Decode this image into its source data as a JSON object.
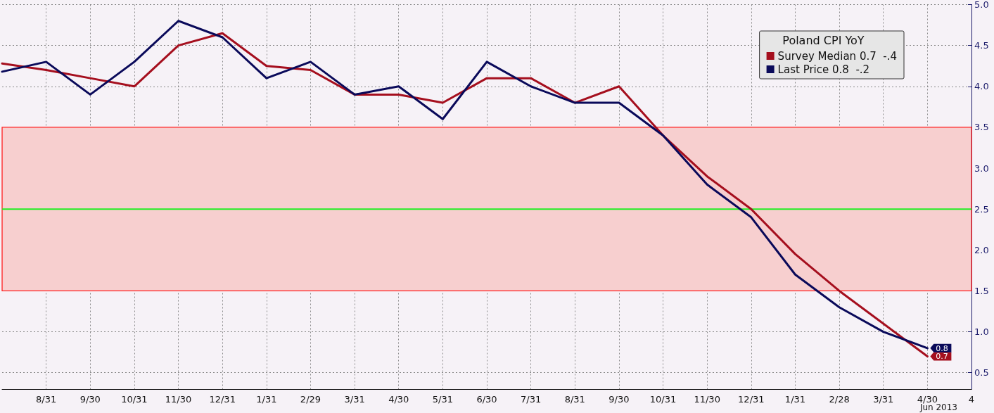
{
  "chart_data": {
    "type": "line",
    "legend_title": "Poland CPI YoY",
    "categories": [
      null,
      "8/31",
      "9/30",
      "10/31",
      "11/30",
      "12/31",
      "1/31",
      "2/29",
      "3/31",
      "4/30",
      "5/31",
      "6/30",
      "7/31",
      "8/31",
      "9/30",
      "10/31",
      "11/30",
      "12/31",
      "1/31",
      "2/28",
      "3/31",
      "4/30",
      "4"
    ],
    "series": [
      {
        "name": "Survey Median 0.7  -.4",
        "color": "#a50f1e",
        "values": [
          4.28,
          4.2,
          4.1,
          4.0,
          4.5,
          4.65,
          4.25,
          4.2,
          3.9,
          3.9,
          3.8,
          4.1,
          4.1,
          3.8,
          4.0,
          3.4,
          2.9,
          2.5,
          1.95,
          1.5,
          1.1,
          0.7,
          null
        ],
        "value_labels": [
          null,
          null,
          null,
          null,
          null,
          null,
          null,
          null,
          null,
          null,
          null,
          null,
          null,
          null,
          null,
          null,
          null,
          null,
          null,
          null,
          null,
          "0.7",
          null
        ]
      },
      {
        "name": "Last Price 0.8  -.2",
        "color": "#0a0a5a",
        "values": [
          4.18,
          4.3,
          3.9,
          4.3,
          4.8,
          4.6,
          4.1,
          4.3,
          3.9,
          4.0,
          3.6,
          4.3,
          4.0,
          3.8,
          3.8,
          3.4,
          2.8,
          2.4,
          1.7,
          1.3,
          1.0,
          0.8,
          null
        ],
        "value_labels": [
          null,
          null,
          null,
          null,
          null,
          null,
          null,
          null,
          null,
          null,
          null,
          null,
          null,
          null,
          null,
          null,
          null,
          null,
          null,
          null,
          null,
          "0.8",
          null
        ]
      }
    ],
    "ylim": [
      0.3,
      5.0
    ],
    "yticks": [
      {
        "value": 0.5,
        "label": "0.5"
      },
      {
        "value": 1,
        "label": "1.0"
      },
      {
        "value": 1.5,
        "label": "1.5"
      },
      {
        "value": 2,
        "label": "2.0"
      },
      {
        "value": 2.5,
        "label": "2.5"
      },
      {
        "value": 3,
        "label": "3.0"
      },
      {
        "value": 3.5,
        "label": "3.5"
      },
      {
        "value": 4,
        "label": "4.0"
      },
      {
        "value": 4.5,
        "label": "4.5"
      },
      {
        "value": 5,
        "label": "5.0"
      }
    ],
    "bands": [
      {
        "axis": "y",
        "from": 1.5,
        "to": 3.5,
        "color": "#f7cfcf"
      }
    ],
    "ref_lines": [
      {
        "axis": "y",
        "value": 2.5,
        "color": "#22ee22"
      }
    ],
    "annotations": [
      "Jun 2013"
    ],
    "grid": true,
    "legend": "top right",
    "marker": "none",
    "line_style": "solid"
  }
}
